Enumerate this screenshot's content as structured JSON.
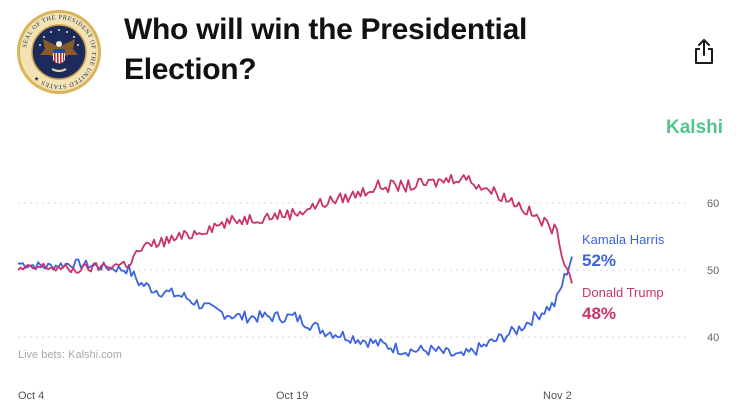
{
  "header": {
    "seal_alt": "Seal of the President of the United States",
    "seal_text": "SEAL OF THE PRESIDENT OF THE UNITED STATES",
    "title": "Who will win the Presidential Election?",
    "share_icon": "share-icon",
    "brand": "Kalshi"
  },
  "colors": {
    "harris": "#3d63dd",
    "trump": "#c8336b",
    "brand": "#52c48c",
    "grid": "#d9d9d9"
  },
  "footer": {
    "source": "Live bets: Kalshi.com"
  },
  "chart_data": {
    "type": "line",
    "x_labels": [
      "Oct 4",
      "Oct 19",
      "Nov 2"
    ],
    "y_ticks": [
      40,
      50,
      60
    ],
    "ylim": [
      32,
      70
    ],
    "grid": "dotted horizontal",
    "series": [
      {
        "name": "Kamala Harris",
        "label_value": "52%",
        "color": "#3d63dd",
        "x": [
          0,
          0.05,
          0.1,
          0.15,
          0.2,
          0.22,
          0.25,
          0.3,
          0.35,
          0.4,
          0.45,
          0.5,
          0.55,
          0.6,
          0.65,
          0.7,
          0.75,
          0.8,
          0.85,
          0.9,
          0.95,
          0.97,
          1
        ],
        "values": [
          51,
          50.5,
          51,
          50.5,
          50,
          48,
          47,
          46,
          44,
          43,
          43,
          43,
          41,
          40,
          39,
          38,
          38,
          37,
          39,
          41,
          44,
          45,
          52
        ]
      },
      {
        "name": "Donald Trump",
        "label_value": "48%",
        "color": "#c8336b",
        "x": [
          0,
          0.05,
          0.1,
          0.15,
          0.2,
          0.22,
          0.25,
          0.3,
          0.35,
          0.4,
          0.45,
          0.5,
          0.55,
          0.6,
          0.65,
          0.7,
          0.75,
          0.8,
          0.85,
          0.9,
          0.95,
          0.97,
          1
        ],
        "values": [
          50,
          50.5,
          50,
          50.5,
          51,
          53,
          54,
          55,
          56.5,
          57.5,
          58,
          58.5,
          60,
          61,
          62.5,
          62.5,
          63,
          64,
          62,
          60,
          57,
          56,
          48
        ]
      }
    ]
  }
}
